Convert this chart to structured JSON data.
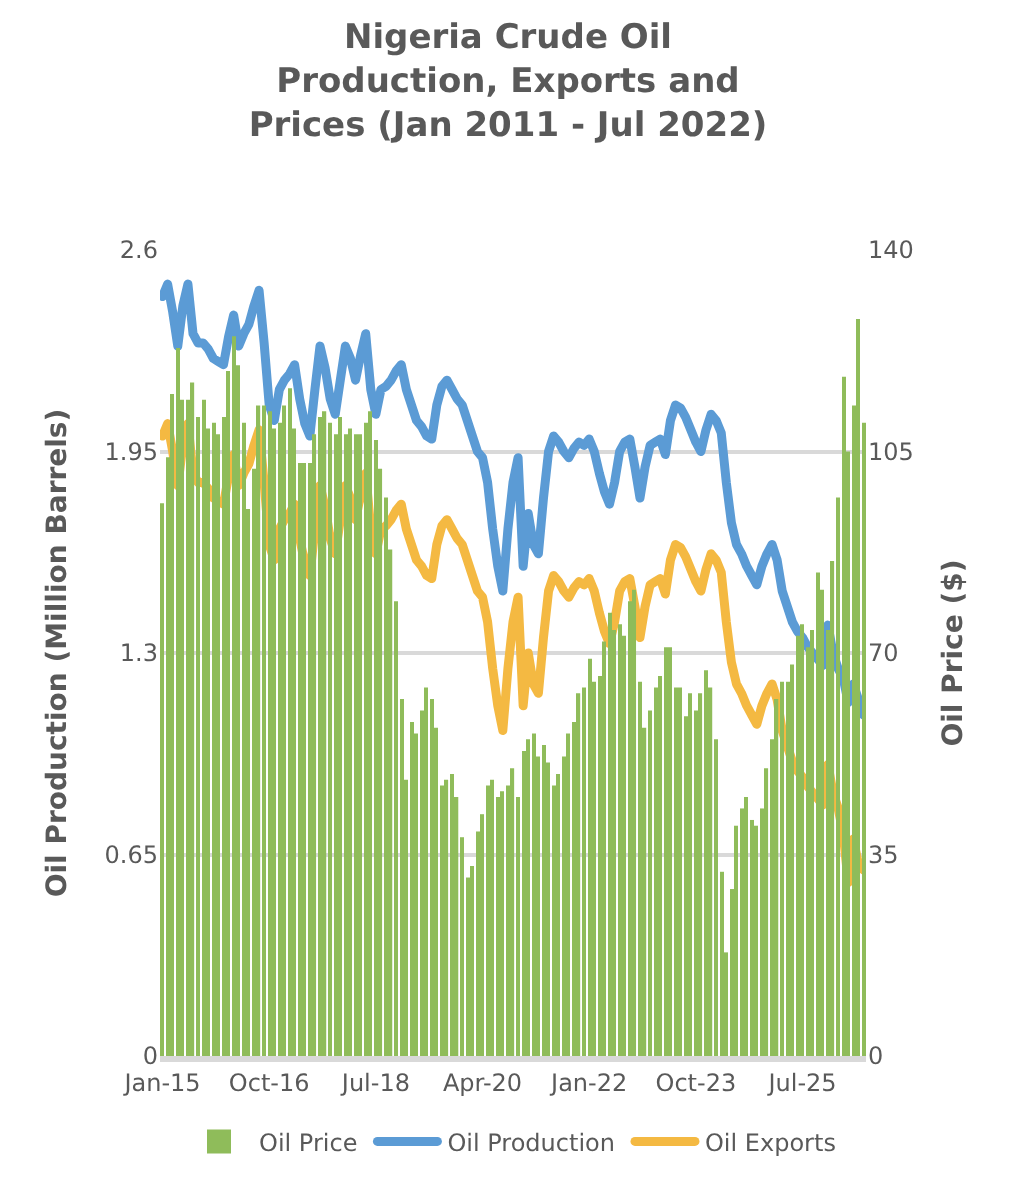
{
  "chart_data": {
    "type": "bar",
    "title": "Nigeria Crude Oil Production, Exports and Prices (Jan 2011 - Jul 2022)",
    "ylabel": "Oil Production (Million Barrels)",
    "y2label": "Oil Price ($)",
    "categories": [
      "Jan-15",
      null,
      null,
      null,
      null,
      null,
      null,
      null,
      null,
      null,
      null,
      null,
      null,
      null,
      null,
      null,
      null,
      null,
      null,
      null,
      null,
      "Oct-16",
      null,
      null,
      null,
      null,
      null,
      null,
      null,
      null,
      null,
      null,
      null,
      null,
      null,
      null,
      null,
      null,
      null,
      null,
      null,
      null,
      "Jul-18",
      null,
      null,
      null,
      null,
      null,
      null,
      null,
      null,
      null,
      null,
      null,
      null,
      null,
      null,
      null,
      null,
      null,
      null,
      null,
      null,
      "Apr-20",
      null,
      null,
      null,
      null,
      null,
      null,
      null,
      null,
      null,
      null,
      null,
      null,
      null,
      null,
      null,
      null,
      null,
      null,
      null,
      null,
      "Jan-22",
      null,
      null,
      null,
      null,
      null,
      null,
      null,
      null,
      null,
      null,
      null,
      null,
      null,
      null,
      null,
      null,
      null,
      null,
      null,
      null,
      "Oct-23",
      null,
      null,
      null,
      null,
      null,
      null,
      null,
      null,
      null,
      null,
      null,
      null,
      null,
      null,
      null,
      null,
      null,
      null,
      null,
      null,
      "Jul-25",
      null,
      null,
      null,
      null,
      null,
      null,
      null,
      null,
      null,
      null,
      null,
      null
    ],
    "series": [
      {
        "name": "Oil Price",
        "axis": "y2",
        "color": "#8fbc5a",
        "values": [
          96,
          104,
          115,
          123,
          114,
          114,
          117,
          111,
          114,
          109,
          110,
          108,
          111,
          119,
          125,
          120,
          110,
          95,
          102,
          113,
          113,
          112,
          109,
          110,
          113,
          116,
          109,
          103,
          103,
          103,
          108,
          111,
          112,
          110,
          108,
          111,
          108,
          109,
          108,
          108,
          110,
          112,
          107,
          102,
          97,
          88,
          79,
          62,
          48,
          58,
          56,
          60,
          64,
          62,
          57,
          47,
          48,
          49,
          45,
          38,
          31,
          33,
          39,
          42,
          47,
          48,
          45,
          46,
          47,
          50,
          45,
          53,
          55,
          56,
          52,
          54,
          51,
          47,
          49,
          52,
          56,
          58,
          63,
          64,
          69,
          65,
          66,
          72,
          77,
          74,
          75,
          73,
          79,
          81,
          65,
          57,
          60,
          64,
          66,
          71,
          71,
          64,
          64,
          59,
          63,
          60,
          63,
          67,
          64,
          55,
          32,
          18,
          29,
          40,
          43,
          45,
          41,
          40,
          43,
          50,
          55,
          62,
          65,
          65,
          68,
          73,
          75,
          71,
          74,
          84,
          81,
          74,
          86,
          97,
          118,
          105,
          113,
          128,
          110
        ]
      },
      {
        "name": "Oil Production",
        "type": "line",
        "color": "#5b9bd5",
        "values": [
          2.45,
          2.49,
          2.4,
          2.29,
          2.42,
          2.49,
          2.33,
          2.3,
          2.3,
          2.28,
          2.25,
          2.24,
          2.23,
          2.32,
          2.39,
          2.29,
          2.33,
          2.36,
          2.42,
          2.47,
          2.3,
          2.1,
          2.05,
          2.15,
          2.18,
          2.2,
          2.23,
          2.12,
          2.04,
          2.0,
          2.15,
          2.29,
          2.22,
          2.12,
          2.07,
          2.18,
          2.29,
          2.25,
          2.18,
          2.26,
          2.33,
          2.15,
          2.07,
          2.15,
          2.16,
          2.18,
          2.21,
          2.23,
          2.15,
          2.1,
          2.05,
          2.03,
          2.0,
          1.99,
          2.1,
          2.16,
          2.18,
          2.15,
          2.12,
          2.1,
          2.05,
          2.0,
          1.95,
          1.93,
          1.85,
          1.7,
          1.58,
          1.5,
          1.7,
          1.85,
          1.93,
          1.58,
          1.75,
          1.65,
          1.62,
          1.8,
          1.95,
          2.0,
          1.98,
          1.95,
          1.93,
          1.96,
          1.98,
          1.97,
          1.99,
          1.95,
          1.88,
          1.82,
          1.78,
          1.85,
          1.95,
          1.98,
          1.99,
          1.9,
          1.8,
          1.9,
          1.97,
          1.98,
          1.99,
          1.94,
          2.05,
          2.1,
          2.09,
          2.06,
          2.02,
          1.98,
          1.95,
          2.02,
          2.07,
          2.05,
          2.01,
          1.85,
          1.72,
          1.65,
          1.62,
          1.58,
          1.55,
          1.52,
          1.58,
          1.62,
          1.65,
          1.6,
          1.5,
          1.45,
          1.4,
          1.37,
          1.35,
          1.32,
          1.3,
          1.28,
          1.26,
          1.39,
          1.3,
          1.25,
          1.22,
          1.14,
          1.2,
          1.15,
          1.1
        ]
      },
      {
        "name": "Oil Exports",
        "type": "line",
        "color": "#f4b942",
        "values": [
          2.0,
          2.04,
          1.95,
          1.84,
          1.97,
          2.04,
          1.88,
          1.85,
          1.85,
          1.83,
          1.8,
          1.79,
          1.78,
          1.87,
          1.94,
          1.84,
          1.88,
          1.91,
          1.97,
          2.02,
          1.85,
          1.65,
          1.6,
          1.7,
          1.73,
          1.75,
          1.78,
          1.67,
          1.59,
          1.55,
          1.7,
          1.84,
          1.77,
          1.67,
          1.62,
          1.73,
          1.84,
          1.8,
          1.73,
          1.81,
          1.88,
          1.7,
          1.62,
          1.7,
          1.71,
          1.73,
          1.76,
          1.78,
          1.7,
          1.65,
          1.6,
          1.58,
          1.55,
          1.54,
          1.65,
          1.71,
          1.73,
          1.7,
          1.67,
          1.65,
          1.6,
          1.55,
          1.5,
          1.48,
          1.4,
          1.25,
          1.13,
          1.05,
          1.25,
          1.4,
          1.48,
          1.13,
          1.3,
          1.2,
          1.17,
          1.35,
          1.5,
          1.55,
          1.53,
          1.5,
          1.48,
          1.51,
          1.53,
          1.52,
          1.54,
          1.5,
          1.43,
          1.37,
          1.33,
          1.4,
          1.5,
          1.53,
          1.54,
          1.45,
          1.35,
          1.45,
          1.52,
          1.53,
          1.54,
          1.49,
          1.6,
          1.65,
          1.64,
          1.61,
          1.57,
          1.53,
          1.5,
          1.57,
          1.62,
          1.6,
          1.56,
          1.4,
          1.27,
          1.2,
          1.17,
          1.13,
          1.1,
          1.07,
          1.13,
          1.17,
          1.2,
          1.15,
          1.05,
          1.0,
          0.95,
          0.92,
          0.9,
          0.87,
          0.85,
          0.83,
          0.81,
          0.94,
          0.85,
          0.8,
          0.72,
          0.56,
          0.7,
          0.62,
          0.6
        ]
      }
    ],
    "ylim": [
      0,
      2.6
    ],
    "yticks": [
      0,
      0.65,
      1.3,
      1.95,
      2.6
    ],
    "y2lim": [
      0,
      140
    ],
    "y2ticks": [
      0,
      35,
      70,
      105,
      140
    ],
    "grid": "y",
    "legend": "bottom"
  }
}
